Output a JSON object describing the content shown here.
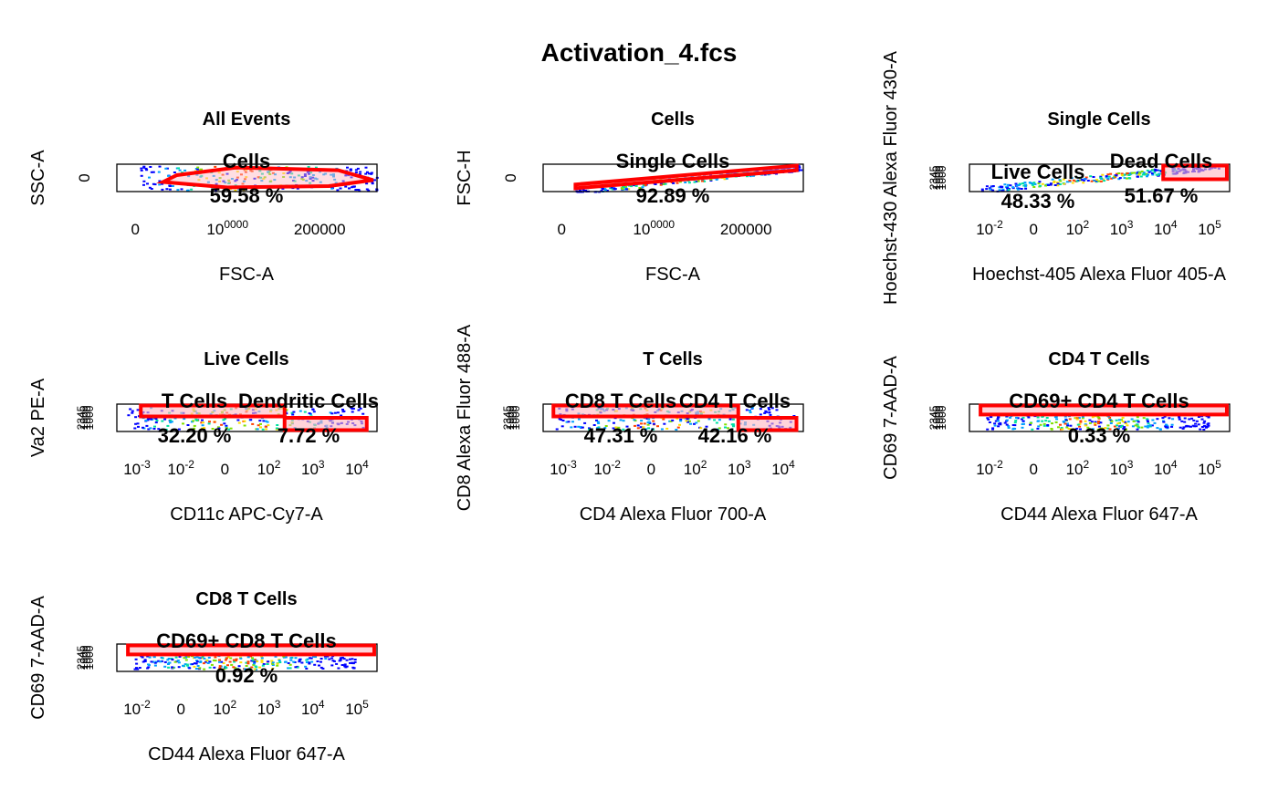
{
  "title": "Activation_4.fcs",
  "colors": {
    "gate": "#ff0000",
    "gate_fill": "#ffb6c1",
    "frame": "#000000"
  },
  "chart_data": [
    {
      "type": "scatter",
      "title": "All Events",
      "xlabel": "FSC-A",
      "ylabel": "SSC-A",
      "xscale": "linear",
      "xlim": [
        -20000,
        262144
      ],
      "xticks": [
        "0",
        "100000",
        "200000"
      ],
      "yticks": [
        "0"
      ],
      "density": {
        "xrange": [
          5000,
          262000
        ],
        "yrange": [
          0.05,
          0.95
        ],
        "shape": "band"
      },
      "gates": [
        {
          "name": "Cells",
          "percent": "59.58 %",
          "shape": "polygon",
          "vertices": [
            [
              30000,
              0.35
            ],
            [
              45000,
              0.6
            ],
            [
              110000,
              0.88
            ],
            [
              220000,
              0.78
            ],
            [
              258000,
              0.42
            ],
            [
              210000,
              0.2
            ],
            [
              100000,
              0.15
            ]
          ]
        }
      ]
    },
    {
      "type": "scatter",
      "title": "Cells",
      "xlabel": "FSC-A",
      "ylabel": "FSC-H",
      "xscale": "linear",
      "xlim": [
        -20000,
        262144
      ],
      "xticks": [
        "0",
        "100000",
        "200000"
      ],
      "yticks": [
        "0"
      ],
      "density": {
        "xrange": [
          15000,
          260000
        ],
        "yrange": [
          0.05,
          0.9
        ],
        "shape": "diagonal"
      },
      "gates": [
        {
          "name": "Single Cells",
          "percent": "92.89 %",
          "shape": "polygon",
          "vertices": [
            [
              15000,
              0.12
            ],
            [
              15000,
              0.26
            ],
            [
              255000,
              0.95
            ],
            [
              255000,
              0.78
            ]
          ]
        }
      ]
    },
    {
      "type": "scatter",
      "title": "Single Cells",
      "xlabel": "Hoechst-405 Alexa Fluor 405-A",
      "ylabel": "Hoechst-430 Alexa Fluor 430-A",
      "xscale": "log",
      "xlim": [
        -3.6,
        5.8
      ],
      "xticks": [
        "10-2",
        "0",
        "102",
        "103",
        "104",
        "105"
      ],
      "yticks": [
        "1000",
        "1000",
        "1000",
        "2345"
      ],
      "density": {
        "xrange": [
          -3.2,
          5.4
        ],
        "yrange": [
          0.1,
          0.95
        ],
        "shape": "diagonal"
      },
      "gates": [
        {
          "name": "Live Cells",
          "percent": "48.33 %",
          "shape": "rect",
          "vertices": []
        },
        {
          "name": "Dead Cells",
          "percent": "51.67 %",
          "shape": "rect",
          "vertices": [
            [
              3.4,
              0.45
            ],
            [
              5.7,
              0.95
            ]
          ]
        }
      ]
    },
    {
      "type": "scatter",
      "title": "Live Cells",
      "xlabel": "CD11c APC-Cy7-A",
      "ylabel": "Va2 PE-A",
      "xscale": "log",
      "xlim": [
        -3.3,
        4.3
      ],
      "xticks": [
        "10-3",
        "10-2",
        "0",
        "102",
        "103",
        "104"
      ],
      "yticks": [
        "1000",
        "1000",
        "1000",
        "2345"
      ],
      "density": {
        "xrange": [
          -3.0,
          4.0
        ],
        "yrange": [
          0.1,
          0.9
        ],
        "shape": "band"
      },
      "gates": [
        {
          "name": "T Cells",
          "percent": "32.20 %",
          "shape": "rect",
          "vertices": [
            [
              -2.6,
              0.55
            ],
            [
              1.6,
              0.95
            ]
          ]
        },
        {
          "name": "Dendritic Cells",
          "percent": "7.72 %",
          "shape": "rect",
          "vertices": [
            [
              1.6,
              0.05
            ],
            [
              4.0,
              0.5
            ]
          ]
        }
      ]
    },
    {
      "type": "scatter",
      "title": "T Cells",
      "xlabel": "CD4 Alexa Fluor 700-A",
      "ylabel": "CD8 Alexa Fluor 488-A",
      "xscale": "log",
      "xlim": [
        -3.3,
        4.3
      ],
      "xticks": [
        "10-3",
        "10-2",
        "0",
        "102",
        "103",
        "104"
      ],
      "yticks": [
        "1000",
        "1000",
        "1000",
        "2345"
      ],
      "density": {
        "xrange": [
          -3.0,
          4.0
        ],
        "yrange": [
          0.1,
          0.9
        ],
        "shape": "band"
      },
      "gates": [
        {
          "name": "CD8 T Cells",
          "percent": "47.31 %",
          "shape": "rect",
          "vertices": [
            [
              -3.0,
              0.55
            ],
            [
              2.4,
              0.95
            ]
          ]
        },
        {
          "name": "CD4 T Cells",
          "percent": "42.16 %",
          "shape": "rect",
          "vertices": [
            [
              2.4,
              0.05
            ],
            [
              4.1,
              0.5
            ]
          ]
        }
      ]
    },
    {
      "type": "scatter",
      "title": "CD4 T Cells",
      "xlabel": "CD44 Alexa Fluor 647-A",
      "ylabel": "CD69 7-AAD-A",
      "xscale": "log",
      "xlim": [
        -3.6,
        5.8
      ],
      "xticks": [
        "10-2",
        "0",
        "102",
        "103",
        "104",
        "105"
      ],
      "yticks": [
        "1000",
        "1000",
        "1000",
        "2345"
      ],
      "density": {
        "xrange": [
          -3.0,
          5.0
        ],
        "yrange": [
          0.1,
          0.6
        ],
        "shape": "band"
      },
      "gates": [
        {
          "name": "CD69+ CD4 T Cells",
          "percent": "0.33 %",
          "shape": "rect",
          "vertices": [
            [
              -3.2,
              0.62
            ],
            [
              5.7,
              0.95
            ]
          ]
        }
      ]
    },
    {
      "type": "scatter",
      "title": "CD8 T Cells",
      "xlabel": "CD44 Alexa Fluor 647-A",
      "ylabel": "CD69 7-AAD-A",
      "xscale": "log",
      "xlim": [
        -3.6,
        5.8
      ],
      "xticks": [
        "10-2",
        "0",
        "102",
        "103",
        "104",
        "105"
      ],
      "yticks": [
        "1000",
        "1000",
        "1000",
        "2345"
      ],
      "density": {
        "xrange": [
          -3.0,
          5.0
        ],
        "yrange": [
          0.1,
          0.6
        ],
        "shape": "band"
      },
      "gates": [
        {
          "name": "CD69+ CD8 T Cells",
          "percent": "0.92 %",
          "shape": "rect",
          "vertices": [
            [
              -3.2,
              0.62
            ],
            [
              5.7,
              0.95
            ]
          ]
        }
      ]
    }
  ]
}
